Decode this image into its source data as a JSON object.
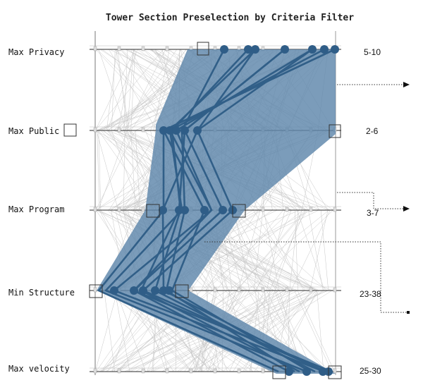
{
  "title": "Tower Section Preselection by Criteria Filter",
  "criteria": [
    {
      "label": "Max Privacy",
      "range": "5-10",
      "filter_box": false
    },
    {
      "label": "Max Public",
      "range": "2-6",
      "filter_box": true
    },
    {
      "label": "Max Program",
      "range": "3-7",
      "filter_box": false
    },
    {
      "label": "Min Structure",
      "range": "23-38",
      "filter_box": false
    },
    {
      "label": "Max velocity",
      "range": "25-30",
      "filter_box": false
    }
  ],
  "colors": {
    "band": "#5e86ab",
    "line": "#315f88",
    "dot": "#2f5d87",
    "background_lines": "#c7c7c7",
    "axis": "#555555"
  }
}
